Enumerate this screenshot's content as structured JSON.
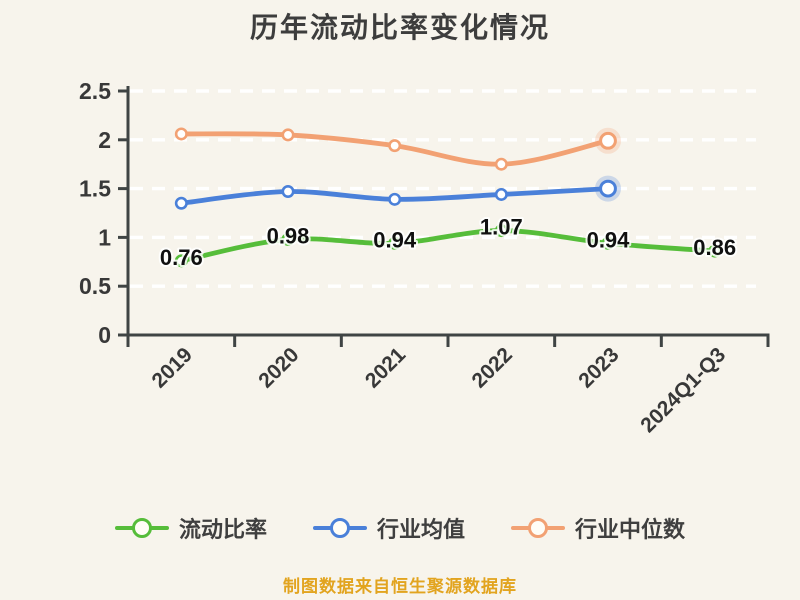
{
  "title": {
    "text": "历年流动比率变化情况",
    "color": "#3d3d3d"
  },
  "footer": {
    "text": "制图数据来自恒生聚源数据库",
    "color": "#e2a41f"
  },
  "legend": {
    "items": [
      {
        "label": "流动比率",
        "color": "#56bd3a"
      },
      {
        "label": "行业均值",
        "color": "#4a80d9"
      },
      {
        "label": "行业中位数",
        "color": "#f2a173"
      }
    ]
  },
  "chart_data": {
    "type": "line",
    "title": "历年流动比率变化情况",
    "categories": [
      "2019",
      "2020",
      "2021",
      "2022",
      "2023",
      "2024Q1-Q3"
    ],
    "series": [
      {
        "name": "流动比率",
        "color": "#56bd3a",
        "labeled": true,
        "values": [
          0.76,
          0.98,
          0.94,
          1.07,
          0.94,
          0.86
        ]
      },
      {
        "name": "行业均值",
        "color": "#4a80d9",
        "labeled": false,
        "values": [
          1.35,
          1.47,
          1.39,
          1.44,
          1.5,
          null
        ]
      },
      {
        "name": "行业中位数",
        "color": "#f2a173",
        "labeled": false,
        "values": [
          2.06,
          2.05,
          1.94,
          1.75,
          1.99,
          null
        ]
      }
    ],
    "xlabel": "",
    "ylabel": "",
    "ylim": [
      0,
      2.5
    ],
    "yticks": [
      0,
      0.5,
      1,
      1.5,
      2,
      2.5
    ],
    "ytick_labels": [
      "0",
      "0.5",
      "1",
      "1.5",
      "2",
      "2.5"
    ],
    "xlabel_rotation": -45,
    "grid": true,
    "grid_color": "#ffffff",
    "grid_style": "dashed",
    "axis_color": "#3f4444",
    "label_color": "#383838",
    "value_label_color": "#101010",
    "legend_position": "bottom",
    "background_color": "#f7f4ec"
  }
}
